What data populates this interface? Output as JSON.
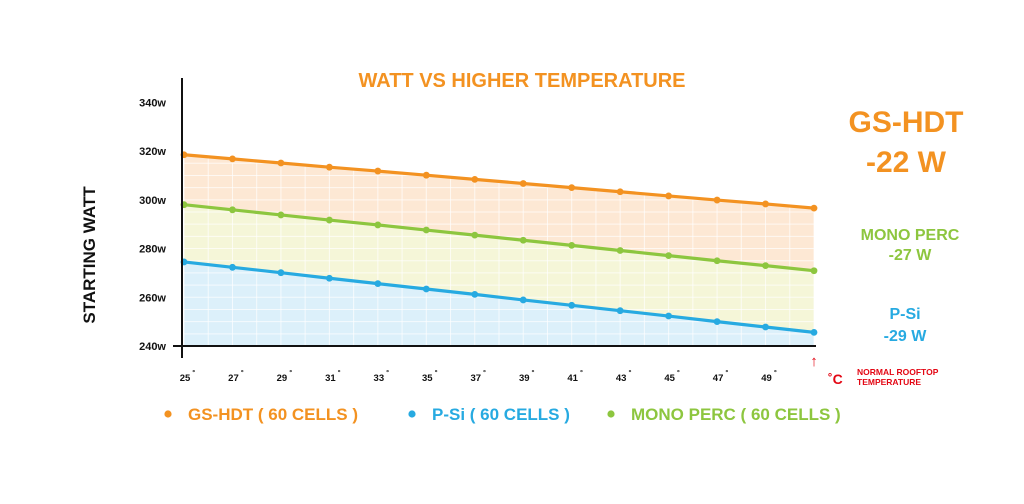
{
  "chart_data": {
    "type": "area",
    "title": "WATT VS HIGHER TEMPERATURE",
    "ylabel": "STARTING WATT",
    "ylim": [
      240,
      350
    ],
    "y_ticks": [
      "240w",
      "260w",
      "280w",
      "300w",
      "320w",
      "340w"
    ],
    "y_tick_values": [
      240,
      260,
      280,
      300,
      320,
      340
    ],
    "x_ticks": [
      "25",
      "27",
      "29",
      "31",
      "33",
      "35",
      "37",
      "39",
      "41",
      "43",
      "45",
      "47",
      "49"
    ],
    "x": [
      25,
      27,
      29,
      31,
      33,
      35,
      37,
      39,
      41,
      43,
      45,
      47,
      49,
      51
    ],
    "xlim": [
      25,
      51
    ],
    "grid": true,
    "series": [
      {
        "name": "GS-HDT ( 60 CELLS )",
        "color": "#f39221",
        "fill": "#fde8d4",
        "values": [
          318.5,
          316.8,
          315.1,
          313.4,
          311.8,
          310.1,
          308.4,
          306.7,
          305.0,
          303.3,
          301.6,
          299.9,
          298.3,
          296.6
        ]
      },
      {
        "name": "MONO PERC ( 60 CELLS )",
        "color": "#8dc63f",
        "fill": "#f5f6d8",
        "values": [
          298.0,
          295.9,
          293.8,
          291.7,
          289.7,
          287.6,
          285.5,
          283.4,
          281.3,
          279.2,
          277.1,
          275.0,
          273.0,
          270.9
        ]
      },
      {
        "name": "P-Si ( 60 CELLS )",
        "color": "#27aae1",
        "fill": "#dcf0fa",
        "values": [
          274.5,
          272.3,
          270.1,
          267.8,
          265.6,
          263.4,
          261.2,
          258.9,
          256.7,
          254.5,
          252.3,
          250.0,
          247.8,
          245.6
        ]
      }
    ],
    "annotations": {
      "gs_hdt_line1": "GS-HDT",
      "gs_hdt_line2": "-22 W",
      "mono_line1": "MONO PERC",
      "mono_line2": "-27 W",
      "psi_line1": "P-Si",
      "psi_line2": "-29 W",
      "unit_symbol": "˚C",
      "rooftop_line1": "NORMAL ROOFTOP",
      "rooftop_line2": "TEMPERATURE",
      "arrow": "↑",
      "degree": "˚"
    },
    "legend": {
      "placement": "bottom",
      "items": [
        {
          "label": "GS-HDT ( 60 CELLS )",
          "color": "#f39221"
        },
        {
          "label": "P-Si ( 60 CELLS )",
          "color": "#27aae1"
        },
        {
          "label": "MONO PERC ( 60 CELLS )",
          "color": "#8dc63f"
        }
      ]
    },
    "accent_red": "#e30613"
  }
}
